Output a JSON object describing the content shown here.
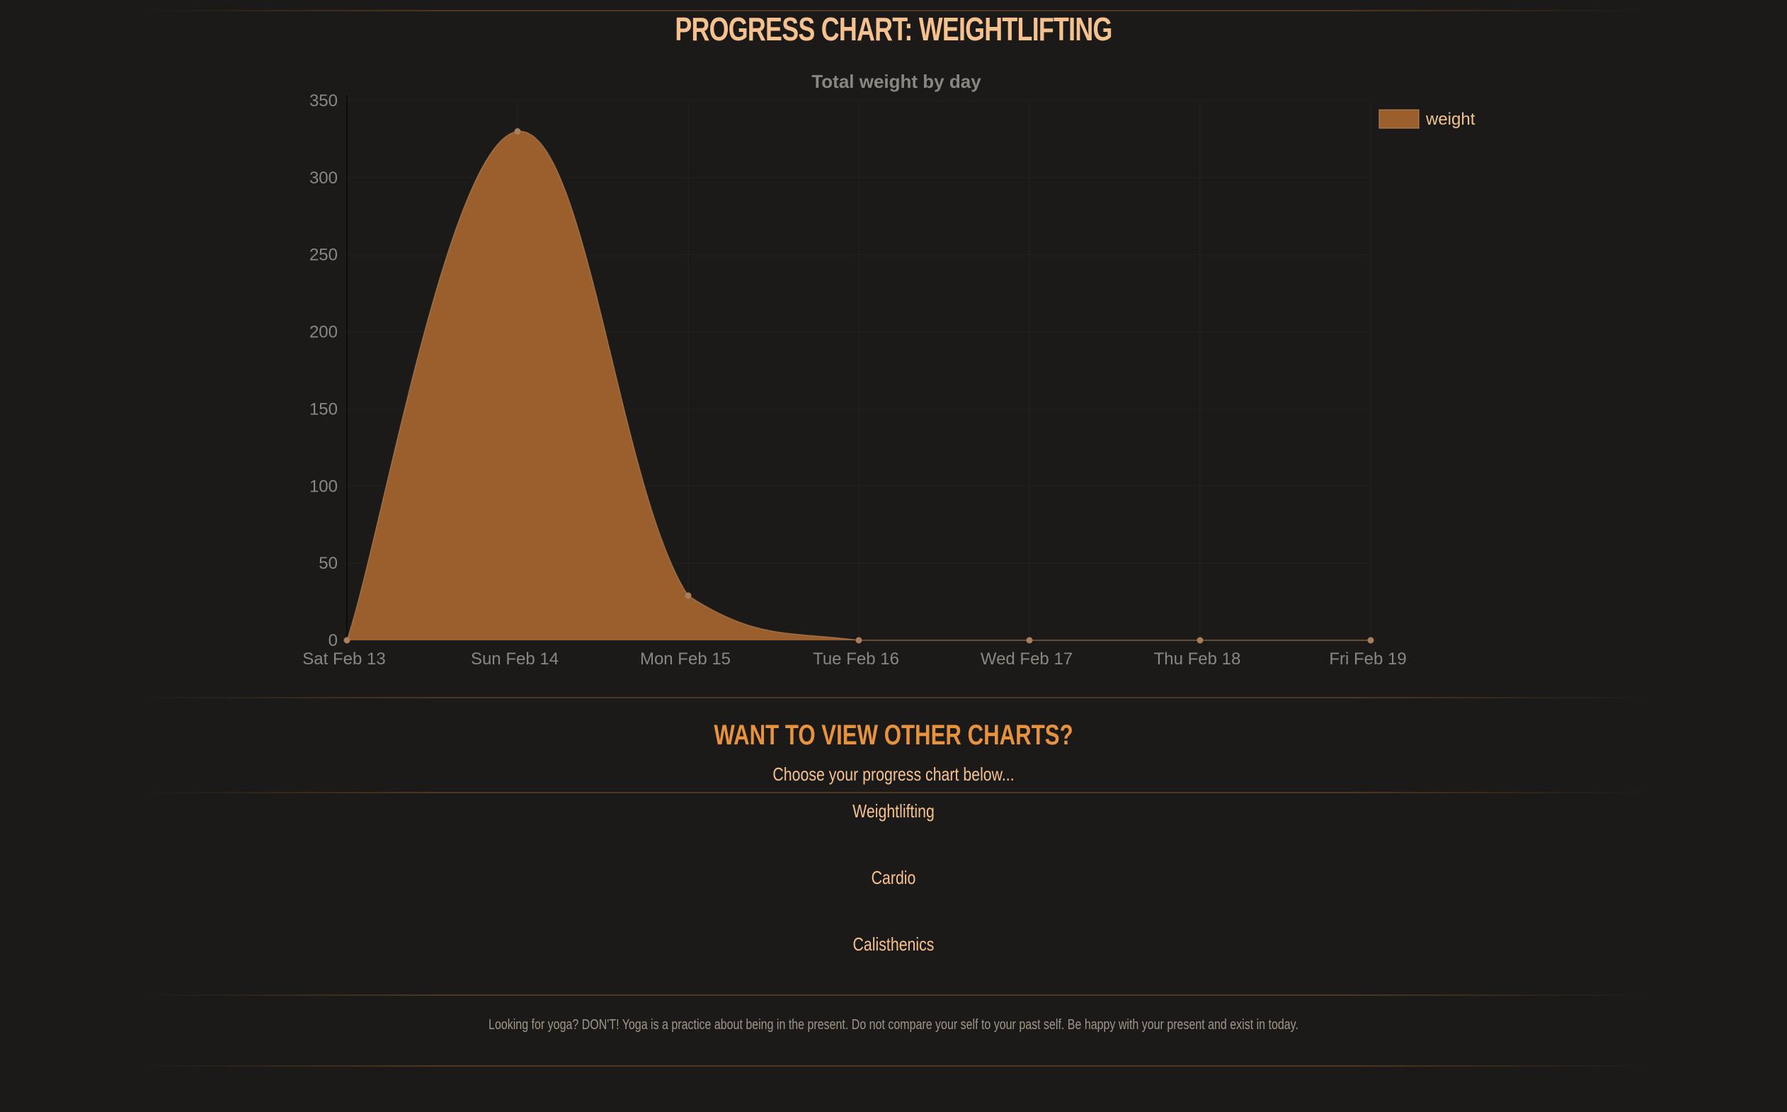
{
  "header": {
    "title": "Progress Chart: Weightlifting"
  },
  "chart_data": {
    "type": "area",
    "title": "Total weight by day",
    "categories": [
      "Sat Feb 13",
      "Sun Feb 14",
      "Mon Feb 15",
      "Tue Feb 16",
      "Wed Feb 17",
      "Thu Feb 18",
      "Fri Feb 19"
    ],
    "series": [
      {
        "name": "weight",
        "values": [
          0,
          330,
          29,
          0,
          0,
          0,
          0
        ]
      }
    ],
    "ylim": [
      0,
      350
    ],
    "yticks": [
      0,
      50,
      100,
      150,
      200,
      250,
      300,
      350
    ],
    "legend": "top-right",
    "grid": true,
    "colors": {
      "fill": "#9a5f2c",
      "line": "#b98a5e",
      "point": "#a87e5c",
      "axis_text": "#8a8680",
      "title_text": "#8a8680",
      "legend_text": "#f0c48f"
    }
  },
  "other_charts": {
    "heading": "Want to view other charts?",
    "prompt": "Choose your progress chart below...",
    "links": [
      "Weightlifting",
      "Cardio",
      "Calisthenics"
    ]
  },
  "footer": {
    "text": "Looking for yoga? DON'T! Yoga is a practice about being in the present. Do not compare your self to your past self. Be happy with your present and exist in today."
  }
}
